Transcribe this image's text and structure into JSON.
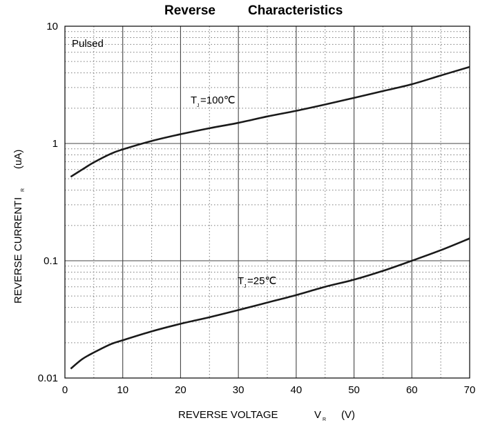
{
  "chart_data": {
    "type": "line",
    "title_part1": "Reverse",
    "title_part2": "Characteristics",
    "xlabel": "REVERSE VOLTAGE",
    "xlabel_symbol": "V",
    "xlabel_sub": "R",
    "xlabel_unit": "(V)",
    "ylabel": "REVERSE CURRENT",
    "ylabel_symbol": "I",
    "ylabel_sub": "R",
    "ylabel_unit": "(uA)",
    "xlim": [
      0,
      70
    ],
    "ylim": [
      0.01,
      10
    ],
    "yscale": "log",
    "grid": true,
    "x_ticks": [
      "0",
      "10",
      "20",
      "30",
      "40",
      "50",
      "60",
      "70"
    ],
    "y_ticks": [
      "0.01",
      "0.1",
      "1",
      "10"
    ],
    "annotation": "Pulsed",
    "series": [
      {
        "name": "T",
        "name_sub": "J",
        "name_value": "=100℃",
        "x": [
          1,
          3,
          5,
          8,
          10,
          15,
          20,
          25,
          30,
          35,
          40,
          45,
          50,
          55,
          60,
          65,
          70
        ],
        "y": [
          0.52,
          0.6,
          0.69,
          0.82,
          0.89,
          1.05,
          1.2,
          1.35,
          1.5,
          1.7,
          1.9,
          2.15,
          2.45,
          2.8,
          3.2,
          3.8,
          4.5
        ]
      },
      {
        "name": "T",
        "name_sub": "J",
        "name_value": "=25℃",
        "x": [
          1,
          3,
          5,
          8,
          10,
          15,
          20,
          25,
          30,
          35,
          40,
          45,
          50,
          55,
          60,
          65,
          70
        ],
        "y": [
          0.012,
          0.0145,
          0.0165,
          0.0195,
          0.021,
          0.025,
          0.029,
          0.033,
          0.038,
          0.044,
          0.051,
          0.06,
          0.069,
          0.082,
          0.1,
          0.123,
          0.155
        ]
      }
    ]
  }
}
